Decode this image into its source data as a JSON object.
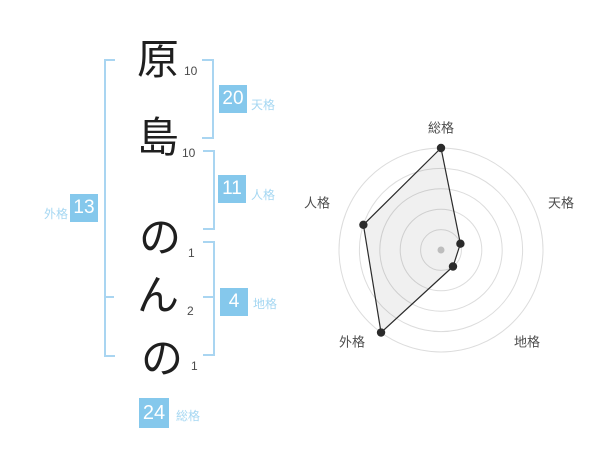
{
  "page": {
    "background": "#ffffff"
  },
  "name_panel": {
    "characters": [
      {
        "char": "原",
        "strokes": "10"
      },
      {
        "char": "島",
        "strokes": "10"
      },
      {
        "char": "の",
        "strokes": "1"
      },
      {
        "char": "ん",
        "strokes": "2"
      },
      {
        "char": "の",
        "strokes": "1"
      }
    ],
    "values": [
      {
        "id": "tenkaku",
        "label": "天格",
        "value": "20"
      },
      {
        "id": "jinkaku",
        "label": "人格",
        "value": "11"
      },
      {
        "id": "chikaku",
        "label": "地格",
        "value": "4"
      },
      {
        "id": "gaikaku",
        "label": "外格",
        "value": "13"
      },
      {
        "id": "soukaku",
        "label": "総格",
        "value": "24"
      }
    ],
    "accent_color": "#85C8EC",
    "label_color": "#A5D7F2",
    "bracket_color": "#A9D5F1"
  },
  "chart_data": {
    "type": "radar",
    "axes": [
      "総格",
      "天格",
      "地格",
      "外格",
      "人格"
    ],
    "values": [
      5,
      1,
      1,
      5,
      4
    ],
    "max": 5,
    "rings": 5,
    "grid": true,
    "legend": false,
    "grid_color": "#dcdcdc",
    "line_color": "#2b2b2b",
    "fill_color": "rgba(0,0,0,0.06)",
    "center_dot_color": "#bdbdbd"
  }
}
